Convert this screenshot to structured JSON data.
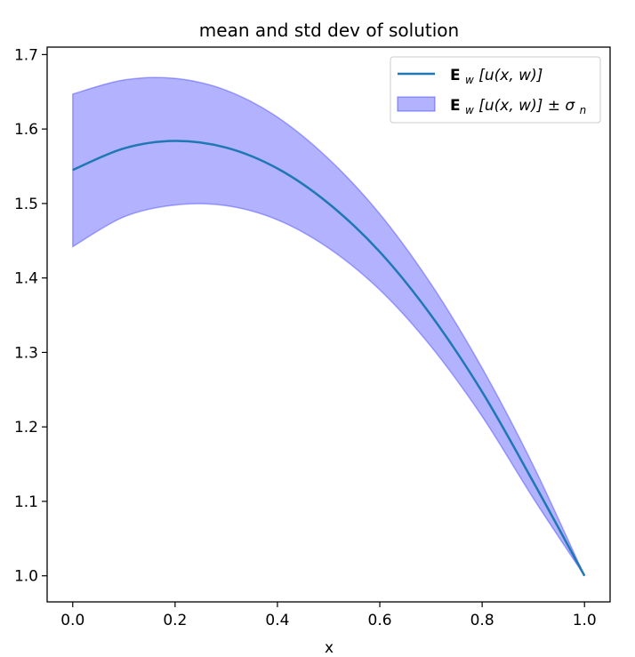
{
  "chart_data": {
    "type": "line",
    "title": "mean and std dev of solution",
    "xlabel": "x",
    "ylabel": "",
    "xlim": [
      -0.05,
      1.05
    ],
    "ylim": [
      0.965,
      1.71
    ],
    "xticks": [
      0.0,
      0.2,
      0.4,
      0.6,
      0.8,
      1.0
    ],
    "xtick_labels": [
      "0.0",
      "0.2",
      "0.4",
      "0.6",
      "0.8",
      "1.0"
    ],
    "yticks": [
      1.0,
      1.1,
      1.2,
      1.3,
      1.4,
      1.5,
      1.6,
      1.7
    ],
    "ytick_labels": [
      "1.0",
      "1.1",
      "1.2",
      "1.3",
      "1.4",
      "1.5",
      "1.6",
      "1.7"
    ],
    "grid": false,
    "legend_position": "top-right",
    "series": [
      {
        "name": "E_w[u(x, w)]",
        "kind": "line",
        "color": "#1f77b4",
        "x": [
          0.0,
          0.1,
          0.2,
          0.3,
          0.4,
          0.5,
          0.6,
          0.7,
          0.8,
          0.9,
          1.0
        ],
        "y": [
          1.545,
          1.574,
          1.584,
          1.575,
          1.547,
          1.5,
          1.435,
          1.35,
          1.247,
          1.126,
          1.0
        ]
      },
      {
        "name": "E_w[u(x, w)] ± σ_n",
        "kind": "band",
        "color": "#0000ff",
        "x": [
          0.0,
          0.1,
          0.2,
          0.3,
          0.4,
          0.5,
          0.6,
          0.7,
          0.8,
          0.9,
          1.0
        ],
        "lower": [
          1.442,
          1.482,
          1.498,
          1.497,
          1.478,
          1.44,
          1.384,
          1.308,
          1.214,
          1.104,
          1.0
        ],
        "upper": [
          1.647,
          1.666,
          1.668,
          1.652,
          1.616,
          1.56,
          1.486,
          1.392,
          1.279,
          1.148,
          1.0
        ]
      }
    ]
  },
  "legend": {
    "line_label": {
      "prefix": "E",
      "sub": "w",
      "body": "[u(x, w)]"
    },
    "band_label": {
      "prefix": "E",
      "sub": "w",
      "body": "[u(x, w)] ± σ",
      "sub2": "n"
    }
  }
}
